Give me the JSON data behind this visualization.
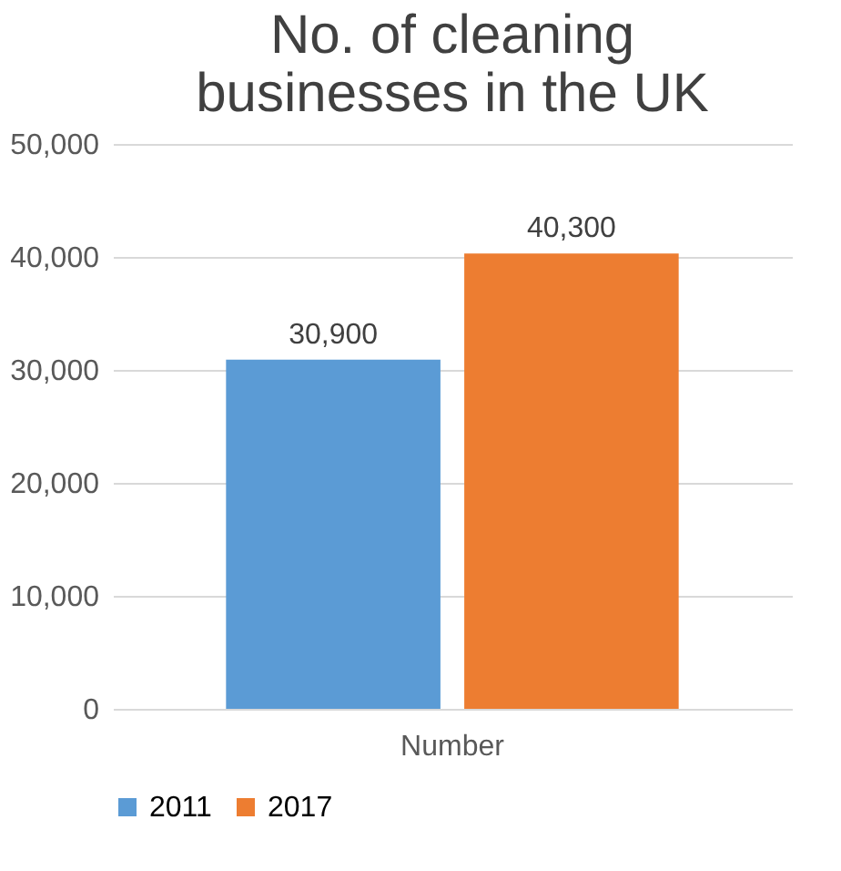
{
  "chart_data": {
    "type": "bar",
    "title": "No. of cleaning businesses in the UK",
    "categories": [
      "Number"
    ],
    "series": [
      {
        "name": "2011",
        "color": "#5b9bd5",
        "values": [
          30900
        ],
        "value_labels": [
          "30,900"
        ]
      },
      {
        "name": "2017",
        "color": "#ed7d31",
        "values": [
          40300
        ],
        "value_labels": [
          "40,300"
        ]
      }
    ],
    "ylim": [
      0,
      50000
    ],
    "yticks": [
      0,
      {
        "value": 10000,
        "label": "10,000"
      },
      {
        "value": 20000,
        "label": "20,000"
      },
      {
        "value": 30000,
        "label": "30,000"
      },
      {
        "value": 40000,
        "label": "40,000"
      },
      {
        "value": 50000,
        "label": "50,000"
      }
    ],
    "grid": "y",
    "legend": "bottom"
  }
}
